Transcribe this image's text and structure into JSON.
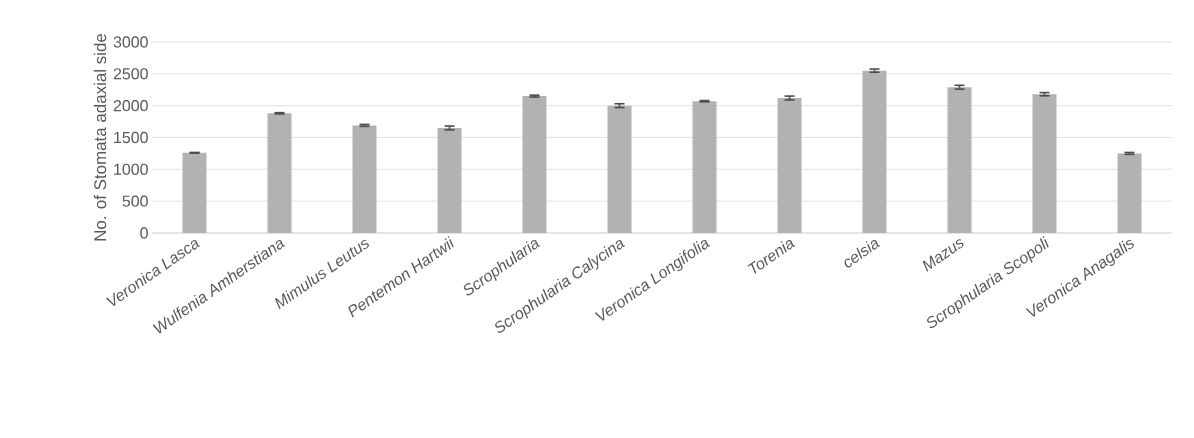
{
  "chart_data": {
    "type": "bar",
    "ylabel": "No. of Stomata adaxial side",
    "categories": [
      "*Veronica Lasca*",
      "*Wulfenia Amherstiana*",
      "*Mimulus Leutus*",
      "*Pentemon Hartwii*",
      "*Scrophularia*",
      "*Scrophularia Calycina*",
      "*Veronica Longifolia*",
      "*Torenia*",
      "*celsia*",
      "*Mazus*",
      "*Scrophularia Scopoli*",
      "*Veronica Anagalis*"
    ],
    "values": [
      1260,
      1880,
      1690,
      1650,
      2150,
      2000,
      2070,
      2120,
      2550,
      2290,
      2180,
      1250
    ],
    "errors": [
      5,
      10,
      15,
      30,
      15,
      30,
      10,
      30,
      25,
      30,
      25,
      15
    ],
    "color": "#b2b2b2",
    "ylim": [
      0,
      3000
    ],
    "yticks": [
      0,
      500,
      1000,
      1500,
      2000,
      2500,
      3000
    ],
    "grid": "y"
  }
}
